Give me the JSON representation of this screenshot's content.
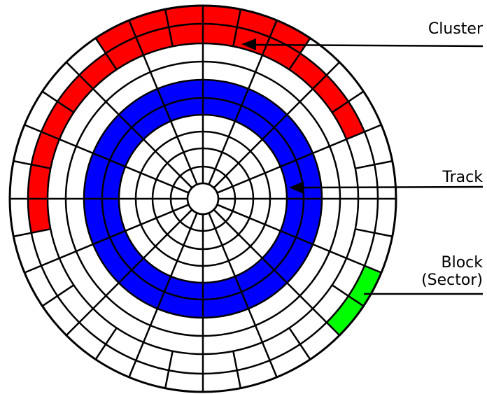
{
  "labels": {
    "cluster": "Cluster",
    "track": "Track",
    "block_line1": "Block",
    "block_line2": "(Sector)"
  },
  "colors": {
    "cluster": "#ff0000",
    "track": "#0000ff",
    "block": "#00ff00",
    "lines": "#000000",
    "background": "#ffffff"
  }
}
